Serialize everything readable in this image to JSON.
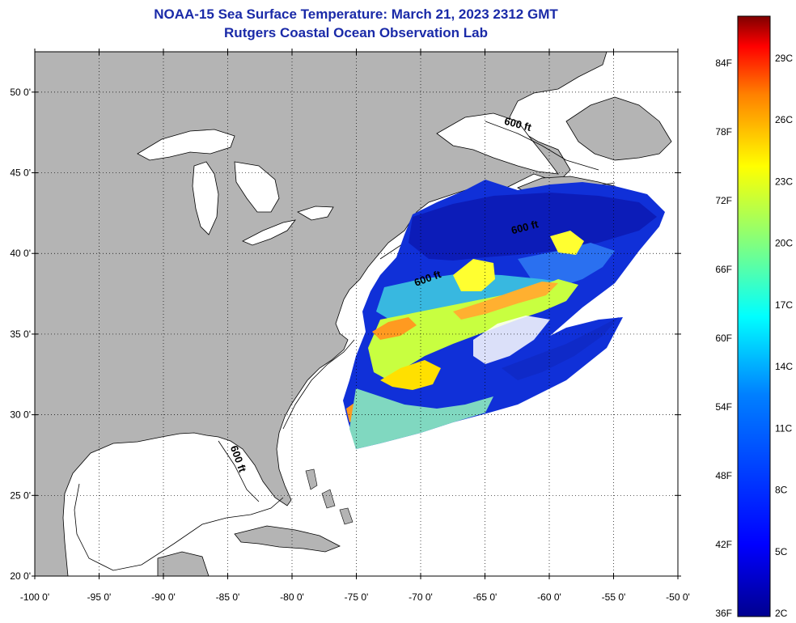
{
  "title": {
    "line1": "NOAA-15 Sea Surface Temperature:  March 21, 2023 2312 GMT",
    "line2": "Rutgers Coastal Ocean Observation Lab"
  },
  "map": {
    "lat_range": [
      20,
      52.5
    ],
    "lon_range": [
      -100,
      -50
    ],
    "lat_ticks": [
      {
        "value": 50,
        "label": "50 0'"
      },
      {
        "value": 45,
        "label": "45 0'"
      },
      {
        "value": 40,
        "label": "40 0'"
      },
      {
        "value": 35,
        "label": "35 0'"
      },
      {
        "value": 30,
        "label": "30 0'"
      },
      {
        "value": 25,
        "label": "25 0'"
      },
      {
        "value": 20,
        "label": "20 0'"
      }
    ],
    "lon_ticks": [
      {
        "value": -100,
        "label": "-100 0'"
      },
      {
        "value": -95,
        "label": "-95 0'"
      },
      {
        "value": -90,
        "label": "-90 0'"
      },
      {
        "value": -85,
        "label": "-85 0'"
      },
      {
        "value": -80,
        "label": "-80 0'"
      },
      {
        "value": -75,
        "label": "-75 0'"
      },
      {
        "value": -70,
        "label": "-70 0'"
      },
      {
        "value": -65,
        "label": "-65 0'"
      },
      {
        "value": -60,
        "label": "-60 0'"
      },
      {
        "value": -55,
        "label": "-55 0'"
      },
      {
        "value": -50,
        "label": "-50 0'"
      }
    ],
    "contour_labels": [
      "600 ft",
      "600 ft",
      "600 ft",
      "600 ft"
    ],
    "land_color": "#b4b4b4",
    "grid": true
  },
  "colorbar": {
    "f_labels": [
      "84F",
      "78F",
      "72F",
      "66F",
      "60F",
      "54F",
      "48F",
      "42F",
      "36F"
    ],
    "c_labels": [
      "29C",
      "26C",
      "23C",
      "20C",
      "17C",
      "14C",
      "11C",
      "8C",
      "5C",
      "2C"
    ],
    "colors": [
      "#7f0000",
      "#ff0000",
      "#ff8000",
      "#ffff00",
      "#80ff80",
      "#00ffff",
      "#0080ff",
      "#0000ff",
      "#00008f"
    ]
  }
}
